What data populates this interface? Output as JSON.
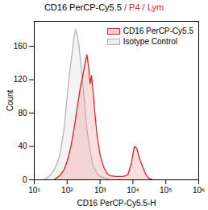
{
  "chart_data": {
    "type": "line",
    "title": "CD16 PerCP-Cy5.5 / P4 / Lym",
    "x_label": "CD16 PerCP-Cy5.5-H",
    "y_label": "Count",
    "log": "x",
    "legend": "top-right",
    "xlim": [
      10,
      1000000
    ],
    "xticks": [
      {
        "value": 10,
        "label": "10¹"
      },
      {
        "value": 100,
        "label": "10²"
      },
      {
        "value": 1000,
        "label": "10³"
      },
      {
        "value": 10000,
        "label": "10⁴"
      },
      {
        "value": 100000,
        "label": "10⁵"
      },
      {
        "value": 1000000,
        "label": "10⁶"
      }
    ],
    "ylim": [
      0,
      190
    ],
    "yticks": [
      0,
      40,
      80,
      120,
      160
    ],
    "series": [
      {
        "name": "Isotype Control",
        "color": "#b0b0b0",
        "x": [
          20,
          30,
          40,
          50,
          60,
          70,
          80,
          90,
          100,
          120,
          140,
          160,
          180,
          200,
          230,
          260,
          300,
          350,
          400,
          500,
          600,
          800,
          1000,
          1500,
          2000
        ],
        "values": [
          0,
          5,
          12,
          20,
          30,
          45,
          60,
          80,
          100,
          130,
          150,
          170,
          180,
          175,
          160,
          140,
          115,
          85,
          60,
          35,
          18,
          8,
          4,
          2,
          0
        ]
      },
      {
        "name": "CD16 PerCP-Cy5.5",
        "color": "#e8141c",
        "x": [
          40,
          60,
          80,
          100,
          130,
          160,
          200,
          250,
          300,
          350,
          400,
          450,
          500,
          550,
          600,
          700,
          800,
          1000,
          1300,
          1600,
          2000,
          3000,
          5000,
          7000,
          9000,
          11000,
          13000,
          16000,
          20000,
          25000,
          30000,
          40000
        ],
        "values": [
          0,
          5,
          12,
          22,
          40,
          60,
          85,
          110,
          125,
          140,
          150,
          135,
          115,
          125,
          110,
          80,
          55,
          30,
          15,
          8,
          5,
          4,
          4,
          6,
          20,
          40,
          38,
          25,
          15,
          6,
          2,
          0
        ]
      }
    ]
  }
}
